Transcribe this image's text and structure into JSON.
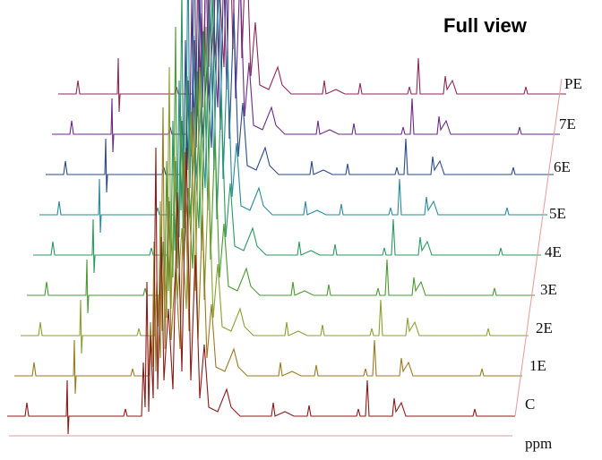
{
  "title": "Full view",
  "traces": [
    {
      "label": "C"
    },
    {
      "label": "1E"
    },
    {
      "label": "2E"
    },
    {
      "label": "3E"
    },
    {
      "label": "4E"
    },
    {
      "label": "5E"
    },
    {
      "label": "6E"
    },
    {
      "label": "7E"
    },
    {
      "label": "PE"
    }
  ],
  "x_axis_label": "ppm"
}
